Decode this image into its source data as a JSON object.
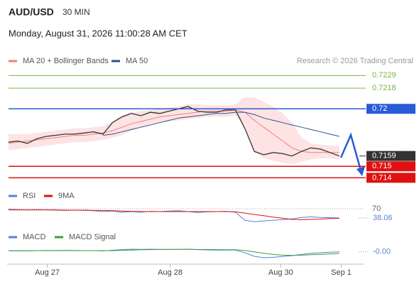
{
  "header": {
    "symbol": "AUD/USD",
    "timeframe": "30 MIN",
    "datetime": "Monday, August 31, 2026 11:00:28 AM CET"
  },
  "chart_data": [
    {
      "type": "line",
      "annotation": "Research © 2026 Trading Central",
      "xlim": [
        0,
        37
      ],
      "ylim": [
        0.7131,
        0.7236
      ],
      "price": {
        "color": "#333333",
        "values": [
          0.7171,
          0.7172,
          0.717,
          0.7174,
          0.7176,
          0.7177,
          0.7178,
          0.7178,
          0.7179,
          0.718,
          0.7178,
          0.7188,
          0.7193,
          0.7196,
          0.7194,
          0.7197,
          0.7196,
          0.7198,
          0.72,
          0.7202,
          0.7198,
          0.7197,
          0.7197,
          0.7199,
          0.7199,
          0.7183,
          0.7163,
          0.716,
          0.7162,
          0.7161,
          0.7159,
          0.7163,
          0.7166,
          0.7165,
          0.7162,
          0.7159
        ]
      },
      "series": [
        {
          "name": "MA 20 + Bollinger Bands",
          "color": "#f08080",
          "band_color": "#fde3e3",
          "values": [
            0.717,
            0.7171,
            0.7172,
            0.7173,
            0.7174,
            0.7175,
            0.7176,
            0.7177,
            0.7177,
            0.7178,
            0.7179,
            0.7181,
            0.7184,
            0.7187,
            0.7189,
            0.7191,
            0.7193,
            0.7194,
            0.7195,
            0.7196,
            0.7197,
            0.7198,
            0.7198,
            0.7198,
            0.7199,
            0.7197,
            0.719,
            0.7184,
            0.7178,
            0.7172,
            0.7166,
            0.7163,
            0.7162,
            0.7162,
            0.7162,
            0.7162
          ],
          "upper": [
            0.7178,
            0.7178,
            0.7178,
            0.7179,
            0.718,
            0.7181,
            0.7182,
            0.7183,
            0.7183,
            0.7184,
            0.7185,
            0.7189,
            0.7194,
            0.7197,
            0.7198,
            0.7199,
            0.72,
            0.7201,
            0.7202,
            0.7204,
            0.7204,
            0.7203,
            0.7203,
            0.7203,
            0.7204,
            0.721,
            0.721,
            0.7206,
            0.7202,
            0.7196,
            0.7188,
            0.7175,
            0.717,
            0.7169,
            0.7168,
            0.7168
          ],
          "lower": [
            0.7164,
            0.7165,
            0.7166,
            0.7167,
            0.7168,
            0.7169,
            0.717,
            0.7171,
            0.7171,
            0.7172,
            0.7173,
            0.7175,
            0.7177,
            0.7181,
            0.7184,
            0.7187,
            0.7188,
            0.7189,
            0.719,
            0.7191,
            0.7192,
            0.7193,
            0.7193,
            0.7193,
            0.7194,
            0.7186,
            0.7162,
            0.7157,
            0.7155,
            0.7153,
            0.7152,
            0.7154,
            0.7156,
            0.7157,
            0.7157,
            0.7156
          ]
        },
        {
          "name": "MA 50",
          "color": "#2f4f8f",
          "values": [
            null,
            null,
            null,
            null,
            null,
            null,
            null,
            null,
            null,
            null,
            0.7177,
            0.7178,
            0.718,
            0.7182,
            0.7184,
            0.7186,
            0.7188,
            0.719,
            0.7192,
            0.7193,
            0.7194,
            0.7195,
            0.7196,
            0.7196,
            0.7197,
            0.7197,
            0.7195,
            0.7192,
            0.719,
            0.7188,
            0.7186,
            0.7184,
            0.7182,
            0.718,
            0.7178,
            0.7176
          ]
        }
      ],
      "levels": [
        {
          "value": 0.7229,
          "color": "#7cb342",
          "style": "text",
          "line": true
        },
        {
          "value": 0.7218,
          "color": "#7cb342",
          "style": "text",
          "line": true
        },
        {
          "value": 0.72,
          "color": "#2a5bd7",
          "style": "box",
          "line": true
        },
        {
          "value": 0.7159,
          "color": "#333333",
          "style": "box",
          "line": false
        },
        {
          "value": 0.715,
          "color": "#e01010",
          "style": "box",
          "line": true
        },
        {
          "value": 0.714,
          "color": "#e01010",
          "style": "box",
          "line": true
        }
      ]
    },
    {
      "type": "line",
      "xlim": [
        0,
        37
      ],
      "ylim": [
        11,
        92
      ],
      "yticks": [
        70
      ],
      "series": [
        {
          "name": "RSI",
          "color": "#5b7fd6",
          "last_label": true,
          "values": [
            68,
            67,
            66,
            67,
            66,
            65,
            64,
            65,
            64,
            63,
            60,
            62,
            58,
            60,
            58,
            61,
            60,
            62,
            63,
            60,
            57,
            59,
            60,
            61,
            58,
            30,
            25,
            28,
            30,
            32,
            35,
            40,
            42,
            40,
            39,
            38.06
          ]
        },
        {
          "name": "9MA",
          "color": "#e01010",
          "values": [
            66,
            66,
            66,
            66,
            66,
            66,
            65,
            65,
            65,
            64,
            64,
            63,
            62,
            61,
            60,
            60,
            60,
            60,
            60,
            60,
            60,
            60,
            60,
            60,
            59,
            55,
            50,
            46,
            41,
            37,
            33,
            32,
            33,
            34,
            36,
            37
          ]
        }
      ]
    },
    {
      "type": "line",
      "xlim": [
        0,
        37
      ],
      "ylim": [
        -0.0008,
        0.0006
      ],
      "xticks": [
        {
          "value": 4.1,
          "label": "Aug 27"
        },
        {
          "value": 17.1,
          "label": "Aug 28"
        },
        {
          "value": 28.8,
          "label": "Aug 30"
        },
        {
          "value": 35.2,
          "label": "Sep 1"
        }
      ],
      "series": [
        {
          "name": "MACD",
          "color": "#5b7fd6",
          "last_label": true,
          "values": [
            4e-05,
            5e-05,
            4e-05,
            5e-05,
            6e-05,
            6e-05,
            6e-05,
            5e-05,
            5e-05,
            5e-05,
            3e-05,
            8e-05,
            0.00012,
            0.00015,
            0.00014,
            0.00015,
            0.00014,
            0.00014,
            0.00014,
            0.00015,
            0.00012,
            0.0001,
            9e-05,
            9e-05,
            9e-05,
            -0.0001,
            -0.00035,
            -0.00045,
            -0.00042,
            -0.00036,
            -0.0003,
            -0.00022,
            -0.00014,
            -0.0001,
            -6e-05,
            -4e-05
          ],
          "value_labels": [
            null,
            null,
            null,
            null,
            null,
            null,
            null,
            null,
            null,
            null,
            null,
            null,
            null,
            null,
            null,
            null,
            null,
            null,
            null,
            null,
            null,
            null,
            null,
            null,
            null,
            null,
            null,
            null,
            null,
            null,
            null,
            null,
            null,
            null,
            null,
            "-0.00"
          ]
        },
        {
          "name": "MACD Signal",
          "color": "#3aa03a",
          "values": [
            4e-05,
            4e-05,
            4e-05,
            5e-05,
            5e-05,
            5e-05,
            6e-05,
            6e-05,
            5e-05,
            5e-05,
            5e-05,
            5e-05,
            7e-05,
            9e-05,
            0.00011,
            0.00012,
            0.00013,
            0.00013,
            0.00014,
            0.00014,
            0.00013,
            0.00013,
            0.00012,
            0.00011,
            0.00011,
            6e-05,
            -4e-05,
            -0.00014,
            -0.00022,
            -0.00027,
            -0.00028,
            -0.00027,
            -0.00024,
            -0.00021,
            -0.00018,
            -0.00015
          ]
        }
      ]
    }
  ]
}
